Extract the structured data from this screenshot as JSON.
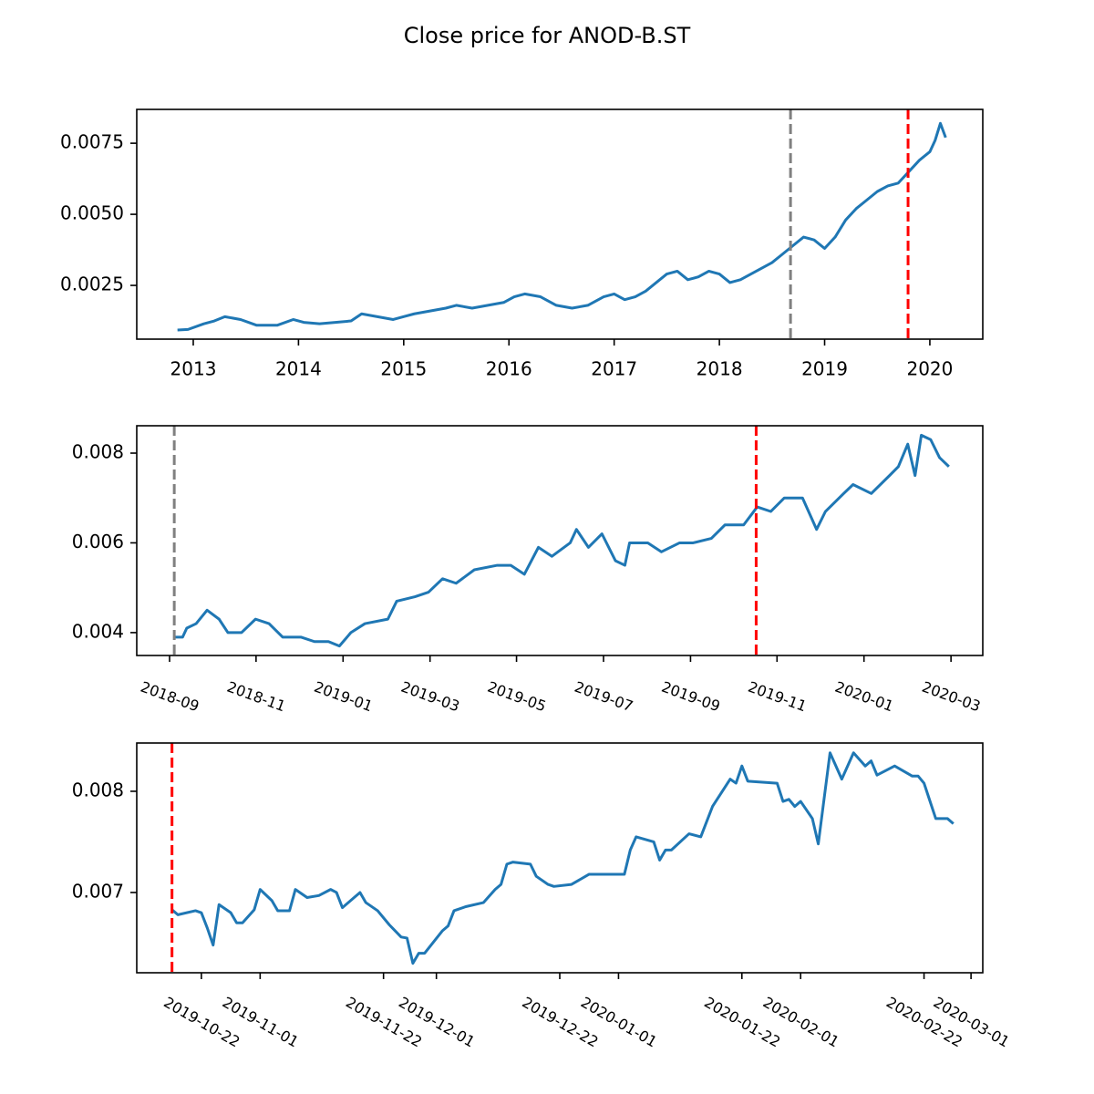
{
  "title": "Close price for ANOD-B.ST",
  "chart_data": [
    {
      "type": "line",
      "color": "#1f77b4",
      "x": [
        2012.85,
        2012.95,
        2013.1,
        2013.2,
        2013.3,
        2013.45,
        2013.6,
        2013.8,
        2013.95,
        2014.05,
        2014.2,
        2014.35,
        2014.5,
        2014.6,
        2014.75,
        2014.9,
        2015.0,
        2015.1,
        2015.25,
        2015.4,
        2015.5,
        2015.65,
        2015.8,
        2015.95,
        2016.05,
        2016.15,
        2016.3,
        2016.45,
        2016.6,
        2016.75,
        2016.9,
        2017.0,
        2017.1,
        2017.2,
        2017.3,
        2017.4,
        2017.5,
        2017.6,
        2017.7,
        2017.8,
        2017.9,
        2018.0,
        2018.1,
        2018.2,
        2018.3,
        2018.4,
        2018.5,
        2018.6,
        2018.7,
        2018.8,
        2018.9,
        2019.0,
        2019.1,
        2019.2,
        2019.3,
        2019.4,
        2019.5,
        2019.6,
        2019.7,
        2019.8,
        2019.9,
        2020.0,
        2020.05,
        2020.1,
        2020.15
      ],
      "values": [
        0.00093,
        0.00095,
        0.00115,
        0.00125,
        0.0014,
        0.0013,
        0.0011,
        0.0011,
        0.0013,
        0.0012,
        0.00115,
        0.0012,
        0.00125,
        0.0015,
        0.0014,
        0.0013,
        0.0014,
        0.0015,
        0.0016,
        0.0017,
        0.0018,
        0.0017,
        0.0018,
        0.0019,
        0.0021,
        0.0022,
        0.0021,
        0.0018,
        0.0017,
        0.0018,
        0.0021,
        0.0022,
        0.002,
        0.0021,
        0.0023,
        0.0026,
        0.0029,
        0.003,
        0.0027,
        0.0028,
        0.003,
        0.0029,
        0.0026,
        0.0027,
        0.0029,
        0.0031,
        0.0033,
        0.0036,
        0.0039,
        0.0042,
        0.0041,
        0.0038,
        0.0042,
        0.0048,
        0.0052,
        0.0055,
        0.0058,
        0.006,
        0.0061,
        0.0065,
        0.0069,
        0.0072,
        0.0076,
        0.0082,
        0.0077
      ],
      "xlim": [
        2012.463,
        2020.503
      ],
      "ylim": [
        0.00061,
        0.00869
      ],
      "xticks": [
        2013,
        2014,
        2015,
        2016,
        2017,
        2018,
        2019,
        2020
      ],
      "yticks": [
        0.0025,
        {
          "value": 0.005,
          "label": "0.0050"
        },
        0.0075
      ],
      "vlines": [
        {
          "x": 2018.676,
          "color": "#808080"
        },
        {
          "x": 2019.793,
          "color": "#ff0000"
        }
      ]
    },
    {
      "type": "line",
      "color": "#1f77b4",
      "x": [
        2018.677,
        2018.692,
        2018.7,
        2018.718,
        2018.739,
        2018.762,
        2018.779,
        2018.805,
        2018.832,
        2018.858,
        2018.884,
        2018.919,
        2018.945,
        2018.972,
        2018.993,
        2019.015,
        2019.042,
        2019.086,
        2019.103,
        2019.138,
        2019.164,
        2019.191,
        2019.217,
        2019.252,
        2019.296,
        2019.322,
        2019.348,
        2019.375,
        2019.401,
        2019.436,
        2019.448,
        2019.471,
        2019.497,
        2019.523,
        2019.541,
        2019.55,
        2019.585,
        2019.611,
        2019.646,
        2019.672,
        2019.707,
        2019.733,
        2019.769,
        2019.795,
        2019.821,
        2019.847,
        2019.882,
        2019.909,
        2019.926,
        2019.961,
        2019.979,
        2020.014,
        2020.049,
        2020.066,
        2020.084,
        2020.098,
        2020.11,
        2020.128,
        2020.145,
        2020.163
      ],
      "values": [
        0.0039,
        0.0039,
        0.0041,
        0.0042,
        0.0045,
        0.0043,
        0.004,
        0.004,
        0.0043,
        0.0042,
        0.0039,
        0.0039,
        0.0038,
        0.0038,
        0.0037,
        0.004,
        0.0042,
        0.0043,
        0.0047,
        0.0048,
        0.0049,
        0.0052,
        0.0051,
        0.0054,
        0.0055,
        0.0055,
        0.0053,
        0.0059,
        0.0057,
        0.006,
        0.0063,
        0.0059,
        0.0062,
        0.0056,
        0.0055,
        0.006,
        0.006,
        0.0058,
        0.006,
        0.006,
        0.0061,
        0.0064,
        0.0064,
        0.0068,
        0.0067,
        0.007,
        0.007,
        0.0063,
        0.0067,
        0.0071,
        0.0073,
        0.0071,
        0.0075,
        0.0077,
        0.0082,
        0.0075,
        0.0084,
        0.0083,
        0.0079,
        0.0077
      ],
      "xlim": [
        2018.604,
        2020.228
      ],
      "ylim": [
        0.00349,
        0.00861
      ],
      "xticks": [
        {
          "value": 2018.667,
          "label": "2018-09"
        },
        {
          "value": 2018.833,
          "label": "2018-11"
        },
        {
          "value": 2019.0,
          "label": "2019-01"
        },
        {
          "value": 2019.167,
          "label": "2019-03"
        },
        {
          "value": 2019.333,
          "label": "2019-05"
        },
        {
          "value": 2019.5,
          "label": "2019-07"
        },
        {
          "value": 2019.667,
          "label": "2019-09"
        },
        {
          "value": 2019.833,
          "label": "2019-11"
        },
        {
          "value": 2020.0,
          "label": "2020-01"
        },
        {
          "value": 2020.167,
          "label": "2020-03"
        }
      ],
      "yticks": [
        0.004,
        0.006,
        0.008
      ],
      "vlines": [
        {
          "x": 2018.676,
          "color": "#808080"
        },
        {
          "x": 2019.793,
          "color": "#ff0000"
        }
      ]
    },
    {
      "type": "line",
      "color": "#1f77b4",
      "x": [
        "2019-10-17",
        "2019-10-18",
        "2019-10-21",
        "2019-10-22",
        "2019-10-23",
        "2019-10-24",
        "2019-10-25",
        "2019-10-27",
        "2019-10-28",
        "2019-10-29",
        "2019-10-31",
        "2019-11-01",
        "2019-11-03",
        "2019-11-04",
        "2019-11-06",
        "2019-11-07",
        "2019-11-09",
        "2019-11-11",
        "2019-11-13",
        "2019-11-14",
        "2019-11-15",
        "2019-11-17",
        "2019-11-18",
        "2019-11-19",
        "2019-11-21",
        "2019-11-23",
        "2019-11-25",
        "2019-11-26",
        "2019-11-27",
        "2019-11-28",
        "2019-11-29",
        "2019-12-02",
        "2019-12-03",
        "2019-12-04",
        "2019-12-06",
        "2019-12-09",
        "2019-12-11",
        "2019-12-12",
        "2019-12-13",
        "2019-12-14",
        "2019-12-17",
        "2019-12-18",
        "2019-12-20",
        "2019-12-21",
        "2019-12-24",
        "2019-12-27",
        "2020-01-02",
        "2020-01-03",
        "2020-01-04",
        "2020-01-07",
        "2020-01-08",
        "2020-01-09",
        "2020-01-10",
        "2020-01-13",
        "2020-01-15",
        "2020-01-17",
        "2020-01-20",
        "2020-01-21",
        "2020-01-22",
        "2020-01-23",
        "2020-01-28",
        "2020-01-29",
        "2020-01-30",
        "2020-01-31",
        "2020-02-01",
        "2020-02-03",
        "2020-02-04",
        "2020-02-06",
        "2020-02-08",
        "2020-02-10",
        "2020-02-12",
        "2020-02-13",
        "2020-02-14",
        "2020-02-17",
        "2020-02-20",
        "2020-02-21",
        "2020-02-22",
        "2020-02-24",
        "2020-02-26",
        "2020-02-27"
      ],
      "values": [
        0.00683,
        0.00678,
        0.00682,
        0.0068,
        0.00665,
        0.00648,
        0.00688,
        0.0068,
        0.0067,
        0.0067,
        0.00683,
        0.00703,
        0.00692,
        0.00682,
        0.00682,
        0.00703,
        0.00695,
        0.00697,
        0.00703,
        0.007,
        0.00685,
        0.00695,
        0.007,
        0.0069,
        0.00682,
        0.00668,
        0.00656,
        0.00655,
        0.0063,
        0.0064,
        0.0064,
        0.00662,
        0.00667,
        0.00682,
        0.00686,
        0.0069,
        0.00703,
        0.00708,
        0.00728,
        0.0073,
        0.00728,
        0.00716,
        0.00708,
        0.00706,
        0.00708,
        0.00718,
        0.00718,
        0.00742,
        0.00755,
        0.0075,
        0.00732,
        0.00742,
        0.00742,
        0.00758,
        0.00755,
        0.00785,
        0.00812,
        0.00808,
        0.00825,
        0.0081,
        0.00808,
        0.0079,
        0.00792,
        0.00785,
        0.0079,
        0.00773,
        0.00748,
        0.00838,
        0.00812,
        0.00838,
        0.00825,
        0.0083,
        0.00816,
        0.00825,
        0.00815,
        0.00815,
        0.00808,
        0.00773,
        0.00773,
        0.00768
      ],
      "xlim": [
        "2019-10-11",
        "2020-03-03"
      ],
      "ylim": [
        0.006207,
        0.008477
      ],
      "xticks": [
        "2019-10-22",
        "2019-11-01",
        "2019-11-22",
        "2019-12-01",
        "2019-12-22",
        "2020-01-01",
        "2020-01-22",
        "2020-02-01",
        "2020-02-22",
        "2020-03-01"
      ],
      "yticks": [
        0.007,
        0.008
      ],
      "vlines": [
        {
          "x": "2019-10-17",
          "color": "#ff0000"
        }
      ]
    }
  ]
}
